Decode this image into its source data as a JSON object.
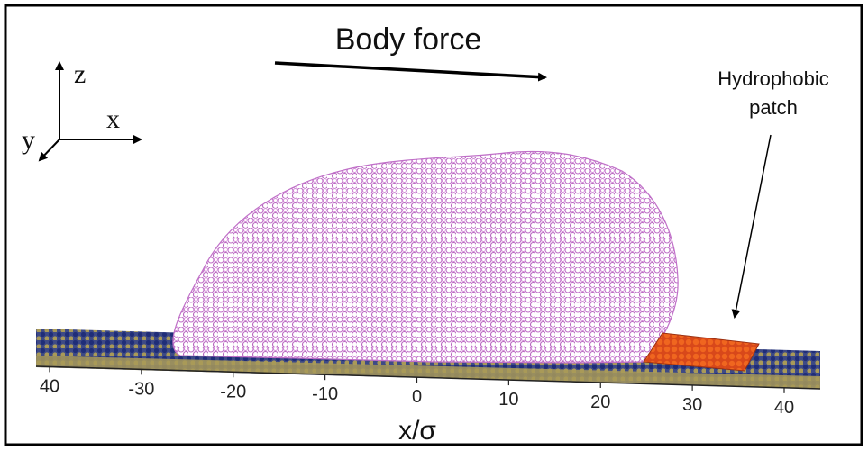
{
  "title": "Body force",
  "axes_triad": {
    "z": "z",
    "x": "x",
    "y": "y"
  },
  "patch_label": {
    "line1": "Hydrophobic",
    "line2": "patch"
  },
  "x_axis": {
    "label": "x/σ",
    "ticks": [
      "40",
      "-30",
      "-20",
      "-10",
      "0",
      "10",
      "20",
      "30",
      "40"
    ]
  },
  "colors": {
    "droplet": "#c070c8",
    "substrate_blue": "#2b3a8a",
    "substrate_tan": "#a89a5a",
    "patch": "#e8551c",
    "frame": "#000000"
  }
}
